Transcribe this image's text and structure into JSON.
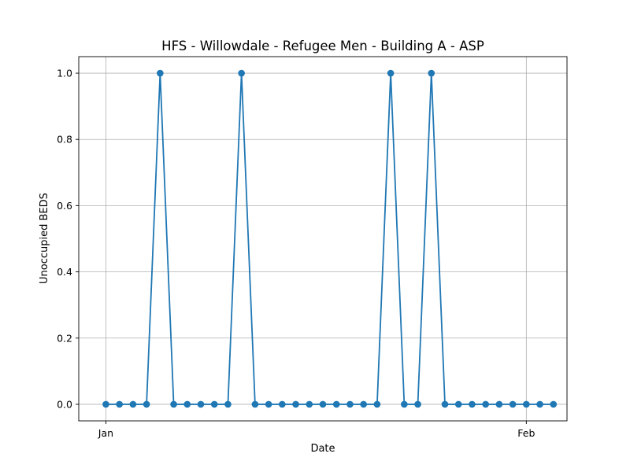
{
  "chart_data": {
    "type": "line",
    "title": "HFS - Willowdale - Refugee Men - Building A - ASP",
    "xlabel": "Date",
    "ylabel": "Unoccupied BEDS",
    "x": [
      "2021-01-01",
      "2021-01-02",
      "2021-01-03",
      "2021-01-04",
      "2021-01-05",
      "2021-01-06",
      "2021-01-07",
      "2021-01-08",
      "2021-01-09",
      "2021-01-10",
      "2021-01-11",
      "2021-01-12",
      "2021-01-13",
      "2021-01-14",
      "2021-01-15",
      "2021-01-16",
      "2021-01-17",
      "2021-01-18",
      "2021-01-19",
      "2021-01-20",
      "2021-01-21",
      "2021-01-22",
      "2021-01-23",
      "2021-01-24",
      "2021-01-25",
      "2021-01-26",
      "2021-01-27",
      "2021-01-28",
      "2021-01-29",
      "2021-01-30",
      "2021-01-31",
      "2021-02-01",
      "2021-02-02",
      "2021-02-03"
    ],
    "series": [
      {
        "values": [
          0,
          0,
          0,
          0,
          1,
          0,
          0,
          0,
          0,
          0,
          1,
          0,
          0,
          0,
          0,
          0,
          0,
          0,
          0,
          0,
          0,
          1,
          0,
          0,
          1,
          0,
          0,
          0,
          0,
          0,
          0,
          0,
          0,
          0
        ],
        "color": "#1f77b4"
      }
    ],
    "xlim": [
      "2020-12-30",
      "2021-02-04"
    ],
    "ylim": [
      -0.05,
      1.05
    ],
    "xticks": [
      {
        "date": "2021-01-01",
        "label": "Jan"
      },
      {
        "date": "2021-02-01",
        "label": "Feb"
      }
    ],
    "yticks": [
      {
        "value": 0.0,
        "label": "0.0"
      },
      {
        "value": 0.2,
        "label": "0.2"
      },
      {
        "value": 0.4,
        "label": "0.4"
      },
      {
        "value": 0.6,
        "label": "0.6"
      },
      {
        "value": 0.8,
        "label": "0.8"
      },
      {
        "value": 1.0,
        "label": "1.0"
      }
    ],
    "grid": true,
    "marker": "circle"
  }
}
